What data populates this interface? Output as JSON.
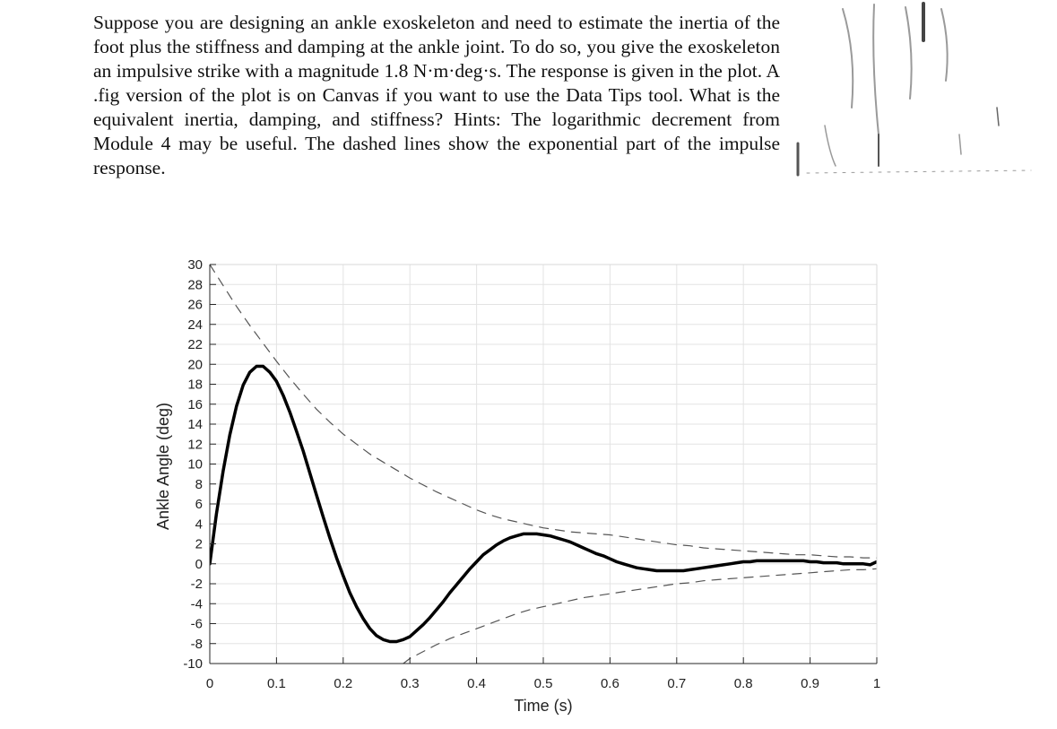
{
  "question": {
    "text": "Suppose you are designing an ankle exoskeleton and need to estimate the inertia of the foot plus the stiffness and damping at the ankle joint. To do so, you give the exoskeleton an impulsive strike with a magnitude 1.8 N·m·deg·s. The response is given in the plot. A .fig version of the plot is on Canvas if you want to use the Data Tips tool. What is the equivalent inertia, damping, and stiffness? Hints: The logarithmic decrement from Module 4 may be useful. The dashed lines show the exponential part of the impulse response."
  },
  "chart_data": {
    "type": "line",
    "title": "",
    "xlabel": "Time (s)",
    "ylabel": "Ankle Angle (deg)",
    "xlim": [
      0,
      1
    ],
    "ylim": [
      -10,
      30
    ],
    "xticks": [
      0,
      0.1,
      0.2,
      0.3,
      0.4,
      0.5,
      0.6,
      0.7,
      0.8,
      0.9,
      1
    ],
    "xtick_labels": [
      "0",
      "0.1",
      "0.2",
      "0.3",
      "0.4",
      "0.5",
      "0.6",
      "0.7",
      "0.8",
      "0.9",
      "1"
    ],
    "yticks": [
      30,
      28,
      26,
      24,
      22,
      20,
      18,
      16,
      14,
      12,
      10,
      8,
      6,
      4,
      2,
      0,
      -2,
      -4,
      -6,
      -8,
      -10
    ],
    "ytick_labels": [
      "30",
      "28",
      "26",
      "24",
      "22",
      "20",
      "18",
      "16",
      "14",
      "12",
      "10",
      "8",
      "6",
      "4",
      "2",
      "0",
      "-2",
      "-4",
      "-6",
      "-8",
      "-10"
    ],
    "grid": true,
    "series": [
      {
        "style": "solid",
        "color": "#000000",
        "x": [
          0,
          0.01,
          0.02,
          0.03,
          0.04,
          0.05,
          0.06,
          0.07,
          0.08,
          0.09,
          0.1,
          0.11,
          0.12,
          0.13,
          0.14,
          0.15,
          0.16,
          0.17,
          0.18,
          0.19,
          0.2,
          0.21,
          0.22,
          0.23,
          0.24,
          0.25,
          0.26,
          0.27,
          0.28,
          0.29,
          0.3,
          0.31,
          0.32,
          0.33,
          0.34,
          0.35,
          0.36,
          0.37,
          0.38,
          0.39,
          0.4,
          0.41,
          0.42,
          0.43,
          0.44,
          0.45,
          0.46,
          0.47,
          0.48,
          0.49,
          0.5,
          0.51,
          0.52,
          0.53,
          0.54,
          0.55,
          0.56,
          0.57,
          0.58,
          0.59,
          0.6,
          0.61,
          0.62,
          0.63,
          0.64,
          0.65,
          0.66,
          0.67,
          0.68,
          0.69,
          0.7,
          0.71,
          0.72,
          0.73,
          0.74,
          0.75,
          0.76,
          0.77,
          0.78,
          0.79,
          0.8,
          0.81,
          0.82,
          0.83,
          0.84,
          0.85,
          0.86,
          0.87,
          0.88,
          0.89,
          0.9,
          0.91,
          0.92,
          0.93,
          0.94,
          0.95,
          0.96,
          0.97,
          0.98,
          0.99,
          1.0
        ],
        "y": [
          0.0,
          5.0,
          9.3,
          12.9,
          15.8,
          17.9,
          19.2,
          19.8,
          19.8,
          19.2,
          18.3,
          16.9,
          15.2,
          13.3,
          11.3,
          9.1,
          6.9,
          4.7,
          2.6,
          0.6,
          -1.2,
          -2.9,
          -4.3,
          -5.5,
          -6.5,
          -7.2,
          -7.6,
          -7.8,
          -7.8,
          -7.6,
          -7.3,
          -6.7,
          -6.1,
          -5.4,
          -4.6,
          -3.8,
          -2.9,
          -2.1,
          -1.3,
          -0.5,
          0.2,
          0.9,
          1.4,
          1.9,
          2.3,
          2.6,
          2.8,
          3.0,
          3.0,
          3.0,
          2.9,
          2.8,
          2.6,
          2.4,
          2.2,
          1.9,
          1.6,
          1.3,
          1.0,
          0.8,
          0.5,
          0.2,
          0.0,
          -0.2,
          -0.4,
          -0.5,
          -0.6,
          -0.7,
          -0.7,
          -0.7,
          -0.7,
          -0.7,
          -0.6,
          -0.5,
          -0.4,
          -0.3,
          -0.2,
          -0.1,
          0.0,
          0.1,
          0.2,
          0.2,
          0.3,
          0.3,
          0.3,
          0.3,
          0.3,
          0.3,
          0.3,
          0.3,
          0.2,
          0.2,
          0.1,
          0.1,
          0.1,
          0.0,
          0.0,
          -0.0,
          -0.0,
          -0.1,
          0.2
        ]
      },
      {
        "style": "dashed",
        "color": "#555555",
        "x": [
          0,
          0.02,
          0.04,
          0.06,
          0.08,
          0.1,
          0.12,
          0.14,
          0.16,
          0.18,
          0.2,
          0.22,
          0.24,
          0.26,
          0.28,
          0.3,
          0.32,
          0.34,
          0.36,
          0.38,
          0.4,
          0.42,
          0.44,
          0.46,
          0.48,
          0.5,
          0.52,
          0.54,
          0.56,
          0.58,
          0.6,
          0.62,
          0.64,
          0.66,
          0.68,
          0.7,
          0.72,
          0.74,
          0.76,
          0.78,
          0.8,
          0.82,
          0.84,
          0.86,
          0.88,
          0.9,
          0.92,
          0.94,
          0.96,
          0.98,
          1.0
        ],
        "y": [
          30.0,
          27.9,
          25.8,
          23.9,
          22.1,
          20.3,
          18.6,
          17.0,
          15.5,
          14.2,
          13.0,
          12.0,
          11.0,
          10.2,
          9.4,
          8.6,
          7.9,
          7.2,
          6.6,
          6.0,
          5.4,
          4.9,
          4.5,
          4.2,
          3.9,
          3.6,
          3.4,
          3.2,
          3.1,
          3.0,
          2.9,
          2.7,
          2.5,
          2.3,
          2.1,
          1.9,
          1.8,
          1.6,
          1.5,
          1.4,
          1.3,
          1.2,
          1.1,
          1.0,
          0.9,
          0.9,
          0.8,
          0.7,
          0.7,
          0.6,
          0.6
        ]
      },
      {
        "style": "dashed",
        "color": "#555555",
        "x": [
          0.29,
          0.3,
          0.32,
          0.34,
          0.36,
          0.38,
          0.4,
          0.42,
          0.44,
          0.46,
          0.48,
          0.5,
          0.52,
          0.54,
          0.56,
          0.58,
          0.6,
          0.62,
          0.64,
          0.66,
          0.68,
          0.7,
          0.72,
          0.74,
          0.76,
          0.78,
          0.8,
          0.82,
          0.84,
          0.86,
          0.88,
          0.9,
          0.92,
          0.94,
          0.96,
          0.98,
          1.0
        ],
        "y": [
          -10.0,
          -9.5,
          -8.8,
          -8.1,
          -7.5,
          -7.0,
          -6.5,
          -6.0,
          -5.5,
          -5.0,
          -4.6,
          -4.3,
          -4.0,
          -3.7,
          -3.4,
          -3.2,
          -3.0,
          -2.8,
          -2.6,
          -2.4,
          -2.2,
          -2.0,
          -1.9,
          -1.7,
          -1.6,
          -1.5,
          -1.4,
          -1.3,
          -1.2,
          -1.1,
          -1.0,
          -0.9,
          -0.8,
          -0.7,
          -0.6,
          -0.6,
          -0.5
        ]
      }
    ]
  }
}
